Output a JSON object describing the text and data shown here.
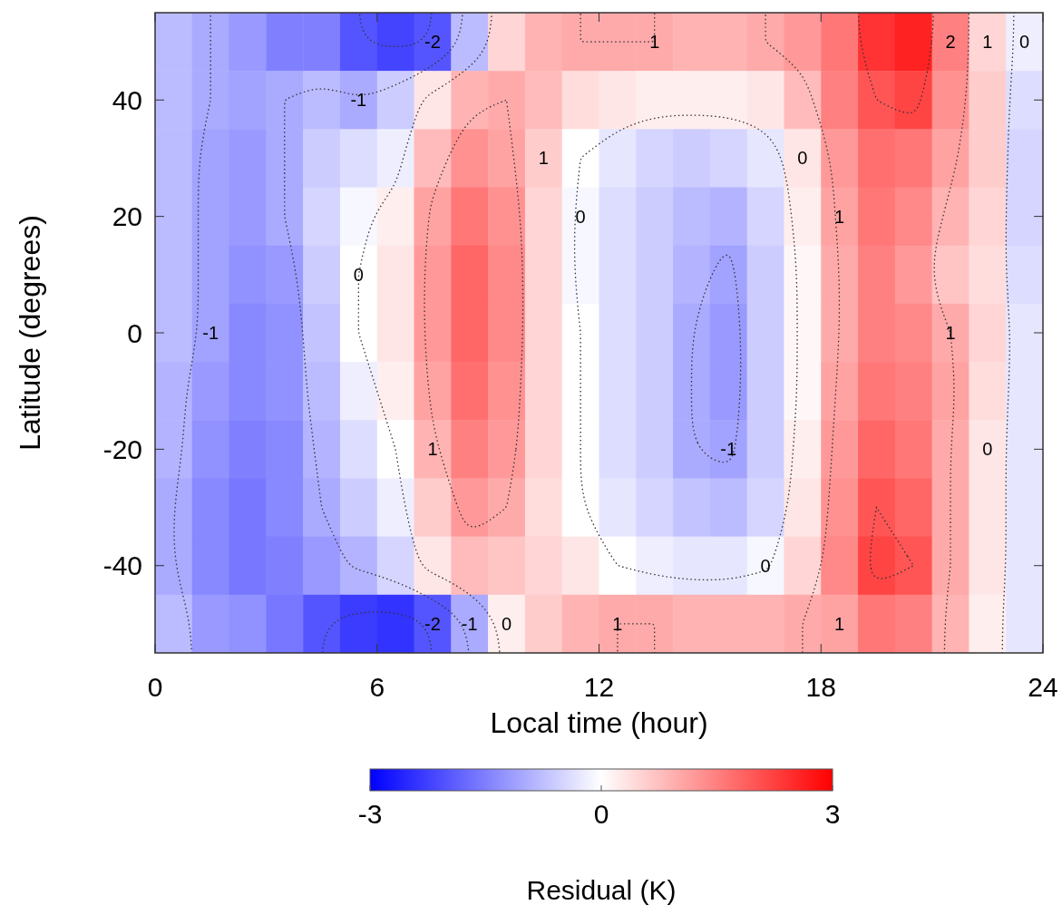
{
  "chart_data": {
    "type": "heatmap",
    "xlabel": "Local time (hour)",
    "ylabel": "Latitude (degrees)",
    "clabel": "Residual (K)",
    "x": [
      0.5,
      1.5,
      2.5,
      3.5,
      4.5,
      5.5,
      6.5,
      7.5,
      8.5,
      9.5,
      10.5,
      11.5,
      12.5,
      13.5,
      14.5,
      15.5,
      16.5,
      17.5,
      18.5,
      19.5,
      20.5,
      21.5,
      22.5,
      23.5
    ],
    "y": [
      50,
      40,
      30,
      20,
      10,
      0,
      -10,
      -20,
      -30,
      -40,
      -50
    ],
    "xlim": [
      0,
      24
    ],
    "xticks": [
      0,
      6,
      12,
      18,
      24
    ],
    "ylim": [
      -55,
      55
    ],
    "yticks": [
      -40,
      -20,
      0,
      20,
      40
    ],
    "clim": [
      -3,
      3
    ],
    "cticks": [
      -3,
      0,
      3
    ],
    "cells": [
      [
        -0.8,
        -1,
        -1.2,
        -1.5,
        -1.5,
        -2,
        -2.2,
        -2,
        -0.8,
        0.5,
        0.9,
        1,
        1,
        1,
        0.9,
        0.9,
        1,
        1.2,
        1.6,
        2.4,
        2.6,
        1.5,
        0.5,
        -0.2
      ],
      [
        -0.8,
        -1,
        -1.1,
        -1,
        -0.8,
        -1,
        -0.6,
        0.3,
        0.9,
        1,
        0.8,
        0.4,
        0.3,
        0.2,
        0.2,
        0.2,
        0.3,
        0.8,
        1.5,
        2,
        2.2,
        1.3,
        0.6,
        -0.4
      ],
      [
        -0.8,
        -1.1,
        -1.2,
        -1,
        -0.6,
        -0.4,
        -0.2,
        0.8,
        1.3,
        1.1,
        0.6,
        0,
        -0.3,
        -0.5,
        -0.6,
        -0.5,
        -0.3,
        0.3,
        1.2,
        1.7,
        1.6,
        1.1,
        0.6,
        -0.5
      ],
      [
        -0.8,
        -1.1,
        -1.2,
        -1,
        -0.5,
        -0.1,
        0.2,
        1.1,
        1.6,
        1.3,
        0.5,
        -0.1,
        -0.4,
        -0.6,
        -0.8,
        -0.9,
        -0.5,
        0.2,
        1.1,
        1.6,
        1.4,
        0.9,
        0.5,
        -0.5
      ],
      [
        -0.8,
        -1.1,
        -1.3,
        -1.2,
        -0.6,
        0,
        0.3,
        1.2,
        1.8,
        1.4,
        0.5,
        -0.1,
        -0.4,
        -0.6,
        -0.9,
        -1.1,
        -0.6,
        0.1,
        1,
        1.5,
        1.2,
        0.7,
        0.4,
        -0.4
      ],
      [
        -0.8,
        -1.1,
        -1.4,
        -1.3,
        -0.7,
        0,
        0.3,
        1.2,
        1.8,
        1.4,
        0.5,
        0,
        -0.4,
        -0.6,
        -1,
        -1.2,
        -0.6,
        0.1,
        1,
        1.5,
        1.4,
        1,
        0.5,
        -0.3
      ],
      [
        -0.9,
        -1.2,
        -1.4,
        -1.3,
        -0.8,
        -0.2,
        0.2,
        1.1,
        1.7,
        1.3,
        0.5,
        0,
        -0.4,
        -0.6,
        -1,
        -1.2,
        -0.6,
        0.1,
        1.1,
        1.6,
        1.5,
        1.1,
        0.4,
        -0.3
      ],
      [
        -0.9,
        -1.3,
        -1.5,
        -1.4,
        -0.9,
        -0.4,
        0,
        0.9,
        1.5,
        1.2,
        0.5,
        0,
        -0.4,
        -0.6,
        -1,
        -1.1,
        -0.6,
        0.2,
        1.2,
        1.8,
        1.6,
        1,
        0.3,
        -0.3
      ],
      [
        -1,
        -1.4,
        -1.6,
        -1.4,
        -1,
        -0.6,
        -0.2,
        0.6,
        1.2,
        1,
        0.4,
        0,
        -0.3,
        -0.5,
        -0.7,
        -0.8,
        -0.5,
        0.3,
        1.3,
        2,
        1.8,
        1,
        0.3,
        -0.3
      ],
      [
        -1,
        -1.4,
        -1.6,
        -1.5,
        -1.2,
        -0.9,
        -0.5,
        0.3,
        0.8,
        0.7,
        0.5,
        0.3,
        0,
        -0.2,
        -0.3,
        -0.3,
        -0.1,
        0.5,
        1.4,
        2.2,
        2,
        1,
        0.3,
        -0.3
      ],
      [
        -0.8,
        -1.2,
        -1.3,
        -1.6,
        -2,
        -2.3,
        -2.4,
        -2,
        -1,
        0.2,
        0.6,
        0.9,
        1,
        1,
        0.9,
        0.9,
        0.9,
        1,
        1.1,
        1.6,
        1.5,
        0.9,
        0.2,
        -0.3
      ]
    ],
    "cell_labels": [
      [
        null,
        null,
        null,
        null,
        null,
        null,
        null,
        "-2",
        null,
        null,
        null,
        null,
        null,
        "1",
        null,
        null,
        null,
        null,
        null,
        null,
        null,
        "2",
        "1",
        "0"
      ],
      [
        null,
        null,
        null,
        null,
        null,
        "-1",
        null,
        null,
        null,
        null,
        null,
        null,
        null,
        null,
        null,
        null,
        null,
        null,
        null,
        null,
        null,
        null,
        null,
        null
      ],
      [
        null,
        null,
        null,
        null,
        null,
        null,
        null,
        null,
        null,
        null,
        "1",
        null,
        null,
        null,
        null,
        null,
        null,
        "0",
        null,
        null,
        null,
        null,
        null,
        null
      ],
      [
        null,
        null,
        null,
        null,
        null,
        null,
        null,
        null,
        null,
        null,
        null,
        "0",
        null,
        null,
        null,
        null,
        null,
        null,
        "1",
        null,
        null,
        null,
        null,
        null
      ],
      [
        null,
        null,
        null,
        null,
        null,
        "0",
        null,
        null,
        null,
        null,
        null,
        null,
        null,
        null,
        null,
        null,
        null,
        null,
        null,
        null,
        null,
        null,
        null,
        null
      ],
      [
        null,
        "-1",
        null,
        null,
        null,
        null,
        null,
        null,
        null,
        null,
        null,
        null,
        null,
        null,
        null,
        null,
        null,
        null,
        null,
        null,
        null,
        "1",
        null,
        null
      ],
      [
        null,
        null,
        null,
        null,
        null,
        null,
        null,
        null,
        null,
        null,
        null,
        null,
        null,
        null,
        null,
        null,
        null,
        null,
        null,
        null,
        null,
        null,
        null,
        null
      ],
      [
        null,
        null,
        null,
        null,
        null,
        null,
        null,
        "1",
        null,
        null,
        null,
        null,
        null,
        null,
        null,
        "-1",
        null,
        null,
        null,
        null,
        null,
        null,
        "0",
        null
      ],
      [
        null,
        null,
        null,
        null,
        null,
        null,
        null,
        null,
        null,
        null,
        null,
        null,
        null,
        null,
        null,
        null,
        null,
        null,
        null,
        null,
        null,
        null,
        null,
        null
      ],
      [
        null,
        null,
        null,
        null,
        null,
        null,
        null,
        null,
        null,
        null,
        null,
        null,
        null,
        null,
        null,
        null,
        "0",
        null,
        null,
        null,
        null,
        null,
        null,
        null
      ],
      [
        null,
        null,
        null,
        null,
        null,
        null,
        null,
        "-2",
        "-1",
        "0",
        null,
        null,
        "1",
        null,
        null,
        null,
        null,
        null,
        "1",
        null,
        null,
        null,
        null,
        null
      ]
    ]
  }
}
